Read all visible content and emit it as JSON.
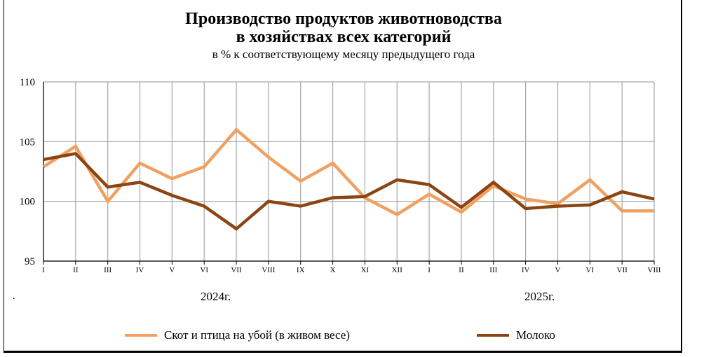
{
  "chart_data": {
    "type": "line",
    "title_line1": "Производство продуктов животноводства",
    "title_line2": "в хозяйствах всех категорий",
    "subtitle": "в % к соответствующему месяцу предыдущего года",
    "categories": [
      "I",
      "II",
      "III",
      "IV",
      "V",
      "VI",
      "VII",
      "VIII",
      "IX",
      "X",
      "XI",
      "XII",
      "I",
      "II",
      "III",
      "IV",
      "V",
      "VI",
      "VII",
      "VIII"
    ],
    "year_labels": [
      "2024г.",
      "2025г."
    ],
    "ylim": [
      95,
      110
    ],
    "yticks": [
      95,
      100,
      105,
      110
    ],
    "grid": true,
    "legend_position": "bottom",
    "series": [
      {
        "name": "Скот и птица на убой (в живом весе)",
        "color": "#F0A060",
        "values": [
          102.9,
          104.6,
          100.0,
          103.2,
          101.9,
          102.9,
          106.0,
          103.7,
          101.7,
          103.2,
          100.3,
          98.9,
          100.6,
          99.1,
          101.3,
          100.2,
          99.8,
          101.8,
          99.2,
          99.2
        ]
      },
      {
        "name": "Молоко",
        "color": "#8B4513",
        "values": [
          103.5,
          104.0,
          101.2,
          101.6,
          100.5,
          99.6,
          97.7,
          100.0,
          99.6,
          100.3,
          100.4,
          101.8,
          101.4,
          99.5,
          101.6,
          99.4,
          99.6,
          99.7,
          100.8,
          100.2
        ]
      }
    ]
  },
  "misc": {
    "dot": "."
  }
}
